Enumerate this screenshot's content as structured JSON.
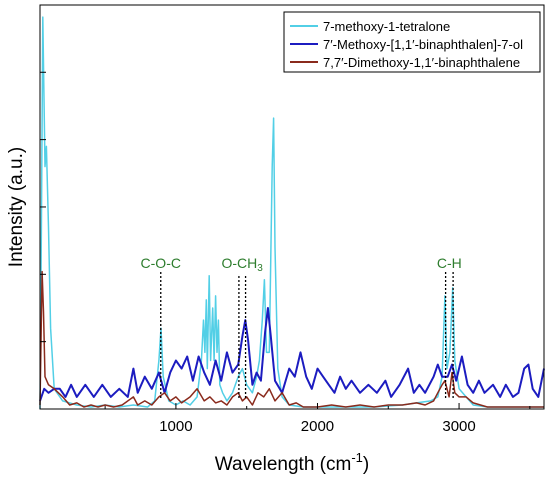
{
  "chart_data": {
    "type": "line",
    "xlabel": "Wavelength (cm",
    "xlabel_sup": "-1",
    "xlabel_tail": ")",
    "ylabel": "Intensity (a.u.)",
    "xlim": [
      40,
      3600
    ],
    "ylim": [
      0,
      100
    ],
    "xticks": [
      1000,
      2000,
      3000
    ],
    "legend_position": "top-right",
    "series": [
      {
        "name": "7-methoxy-1-tetralone",
        "color": "#52cfe6",
        "points": [
          [
            40,
            0
          ],
          [
            50,
            45
          ],
          [
            60,
            97
          ],
          [
            75,
            60
          ],
          [
            85,
            65
          ],
          [
            100,
            45
          ],
          [
            115,
            20
          ],
          [
            140,
            5
          ],
          [
            200,
            2
          ],
          [
            300,
            1
          ],
          [
            400,
            0.5
          ],
          [
            500,
            1
          ],
          [
            600,
            0.5
          ],
          [
            700,
            1
          ],
          [
            800,
            0.5
          ],
          [
            850,
            2
          ],
          [
            880,
            12
          ],
          [
            895,
            20
          ],
          [
            910,
            8
          ],
          [
            950,
            2
          ],
          [
            1000,
            1
          ],
          [
            1050,
            2
          ],
          [
            1100,
            1
          ],
          [
            1150,
            3
          ],
          [
            1180,
            12
          ],
          [
            1195,
            22
          ],
          [
            1205,
            14
          ],
          [
            1215,
            27
          ],
          [
            1222,
            10
          ],
          [
            1235,
            33
          ],
          [
            1245,
            12
          ],
          [
            1260,
            25
          ],
          [
            1270,
            12
          ],
          [
            1280,
            28
          ],
          [
            1290,
            14
          ],
          [
            1300,
            22
          ],
          [
            1310,
            6
          ],
          [
            1330,
            4
          ],
          [
            1360,
            2
          ],
          [
            1400,
            4
          ],
          [
            1440,
            8
          ],
          [
            1470,
            10
          ],
          [
            1500,
            6
          ],
          [
            1540,
            4
          ],
          [
            1570,
            8
          ],
          [
            1590,
            12
          ],
          [
            1610,
            22
          ],
          [
            1625,
            32
          ],
          [
            1640,
            14
          ],
          [
            1660,
            14
          ],
          [
            1680,
            60
          ],
          [
            1690,
            72
          ],
          [
            1700,
            40
          ],
          [
            1720,
            10
          ],
          [
            1750,
            3
          ],
          [
            1800,
            1
          ],
          [
            1900,
            0.5
          ],
          [
            2000,
            0.5
          ],
          [
            2200,
            0.5
          ],
          [
            2400,
            0.5
          ],
          [
            2600,
            1
          ],
          [
            2700,
            1.5
          ],
          [
            2800,
            2
          ],
          [
            2850,
            3
          ],
          [
            2880,
            8
          ],
          [
            2900,
            28
          ],
          [
            2915,
            10
          ],
          [
            2935,
            14
          ],
          [
            2955,
            30
          ],
          [
            2970,
            12
          ],
          [
            3000,
            5
          ],
          [
            3050,
            3
          ],
          [
            3100,
            1
          ],
          [
            3200,
            0.5
          ],
          [
            3400,
            0.5
          ],
          [
            3600,
            0.5
          ]
        ]
      },
      {
        "name": "7′-Methoxy-[1,1′-binaphthalen]-7-ol",
        "color": "#1c1cc0",
        "points": [
          [
            40,
            2
          ],
          [
            70,
            5
          ],
          [
            100,
            4
          ],
          [
            140,
            5
          ],
          [
            180,
            5
          ],
          [
            220,
            3
          ],
          [
            260,
            6
          ],
          [
            300,
            3
          ],
          [
            360,
            6
          ],
          [
            420,
            3
          ],
          [
            480,
            6
          ],
          [
            540,
            3
          ],
          [
            600,
            5
          ],
          [
            660,
            3
          ],
          [
            700,
            10
          ],
          [
            730,
            4
          ],
          [
            780,
            8
          ],
          [
            830,
            5
          ],
          [
            880,
            9
          ],
          [
            920,
            4
          ],
          [
            960,
            9
          ],
          [
            1000,
            12
          ],
          [
            1040,
            10
          ],
          [
            1080,
            13
          ],
          [
            1120,
            7
          ],
          [
            1160,
            13
          ],
          [
            1200,
            9
          ],
          [
            1240,
            6
          ],
          [
            1280,
            12
          ],
          [
            1320,
            7
          ],
          [
            1360,
            14
          ],
          [
            1400,
            9
          ],
          [
            1440,
            11
          ],
          [
            1470,
            18
          ],
          [
            1490,
            22
          ],
          [
            1510,
            17
          ],
          [
            1540,
            6
          ],
          [
            1570,
            9
          ],
          [
            1600,
            7
          ],
          [
            1630,
            19
          ],
          [
            1650,
            25
          ],
          [
            1670,
            18
          ],
          [
            1700,
            7
          ],
          [
            1750,
            4
          ],
          [
            1800,
            10
          ],
          [
            1840,
            8
          ],
          [
            1880,
            14
          ],
          [
            1920,
            8
          ],
          [
            1960,
            5
          ],
          [
            2000,
            10
          ],
          [
            2040,
            8
          ],
          [
            2080,
            6
          ],
          [
            2120,
            4
          ],
          [
            2160,
            8
          ],
          [
            2200,
            5
          ],
          [
            2240,
            7
          ],
          [
            2300,
            4
          ],
          [
            2360,
            6
          ],
          [
            2420,
            4
          ],
          [
            2480,
            7
          ],
          [
            2520,
            3
          ],
          [
            2580,
            6
          ],
          [
            2640,
            10
          ],
          [
            2680,
            4
          ],
          [
            2720,
            6
          ],
          [
            2760,
            4
          ],
          [
            2820,
            8
          ],
          [
            2850,
            11
          ],
          [
            2880,
            8
          ],
          [
            2920,
            8
          ],
          [
            2950,
            11
          ],
          [
            2980,
            7
          ],
          [
            3020,
            13
          ],
          [
            3060,
            6
          ],
          [
            3100,
            4
          ],
          [
            3140,
            7
          ],
          [
            3180,
            4
          ],
          [
            3240,
            6
          ],
          [
            3290,
            3
          ],
          [
            3330,
            6
          ],
          [
            3380,
            3
          ],
          [
            3420,
            4
          ],
          [
            3460,
            10
          ],
          [
            3490,
            11
          ],
          [
            3520,
            5
          ],
          [
            3560,
            3
          ],
          [
            3600,
            10
          ]
        ]
      },
      {
        "name": "7,7′-Dimethoxy-1,1′-binaphthalene",
        "color": "#8a2a1c",
        "points": [
          [
            40,
            1
          ],
          [
            45,
            12
          ],
          [
            55,
            34
          ],
          [
            65,
            24
          ],
          [
            75,
            8
          ],
          [
            100,
            6
          ],
          [
            140,
            5
          ],
          [
            200,
            3
          ],
          [
            250,
            1
          ],
          [
            300,
            1.5
          ],
          [
            350,
            0.5
          ],
          [
            400,
            1
          ],
          [
            450,
            0.5
          ],
          [
            500,
            1
          ],
          [
            560,
            0.5
          ],
          [
            620,
            1
          ],
          [
            700,
            3
          ],
          [
            730,
            1
          ],
          [
            780,
            2
          ],
          [
            830,
            1
          ],
          [
            880,
            3
          ],
          [
            920,
            4
          ],
          [
            960,
            2
          ],
          [
            1000,
            3
          ],
          [
            1040,
            1.5
          ],
          [
            1100,
            3
          ],
          [
            1150,
            5
          ],
          [
            1200,
            2
          ],
          [
            1240,
            3
          ],
          [
            1280,
            1.5
          ],
          [
            1320,
            2
          ],
          [
            1360,
            1
          ],
          [
            1400,
            3
          ],
          [
            1440,
            4
          ],
          [
            1470,
            2
          ],
          [
            1500,
            3
          ],
          [
            1540,
            1
          ],
          [
            1580,
            4
          ],
          [
            1620,
            3
          ],
          [
            1660,
            5
          ],
          [
            1700,
            2
          ],
          [
            1750,
            4
          ],
          [
            1800,
            1
          ],
          [
            1850,
            1.5
          ],
          [
            1900,
            0.5
          ],
          [
            2000,
            0.5
          ],
          [
            2100,
            1
          ],
          [
            2200,
            0.5
          ],
          [
            2300,
            1
          ],
          [
            2400,
            0.5
          ],
          [
            2500,
            1
          ],
          [
            2600,
            1
          ],
          [
            2700,
            1.5
          ],
          [
            2760,
            1
          ],
          [
            2820,
            2
          ],
          [
            2850,
            4
          ],
          [
            2880,
            6
          ],
          [
            2900,
            7
          ],
          [
            2930,
            3
          ],
          [
            2950,
            9
          ],
          [
            2970,
            4
          ],
          [
            3000,
            3
          ],
          [
            3050,
            3
          ],
          [
            3100,
            1.5
          ],
          [
            3200,
            0.5
          ],
          [
            3400,
            0.5
          ],
          [
            3600,
            0.5
          ]
        ]
      }
    ],
    "annotations": [
      {
        "text": "C-O-C",
        "lines": [
          893
        ]
      },
      {
        "text": "O-CH",
        "sub": "3",
        "lines": [
          1445,
          1492
        ]
      },
      {
        "text": "C-H",
        "lines": [
          2905,
          2958
        ]
      }
    ]
  }
}
